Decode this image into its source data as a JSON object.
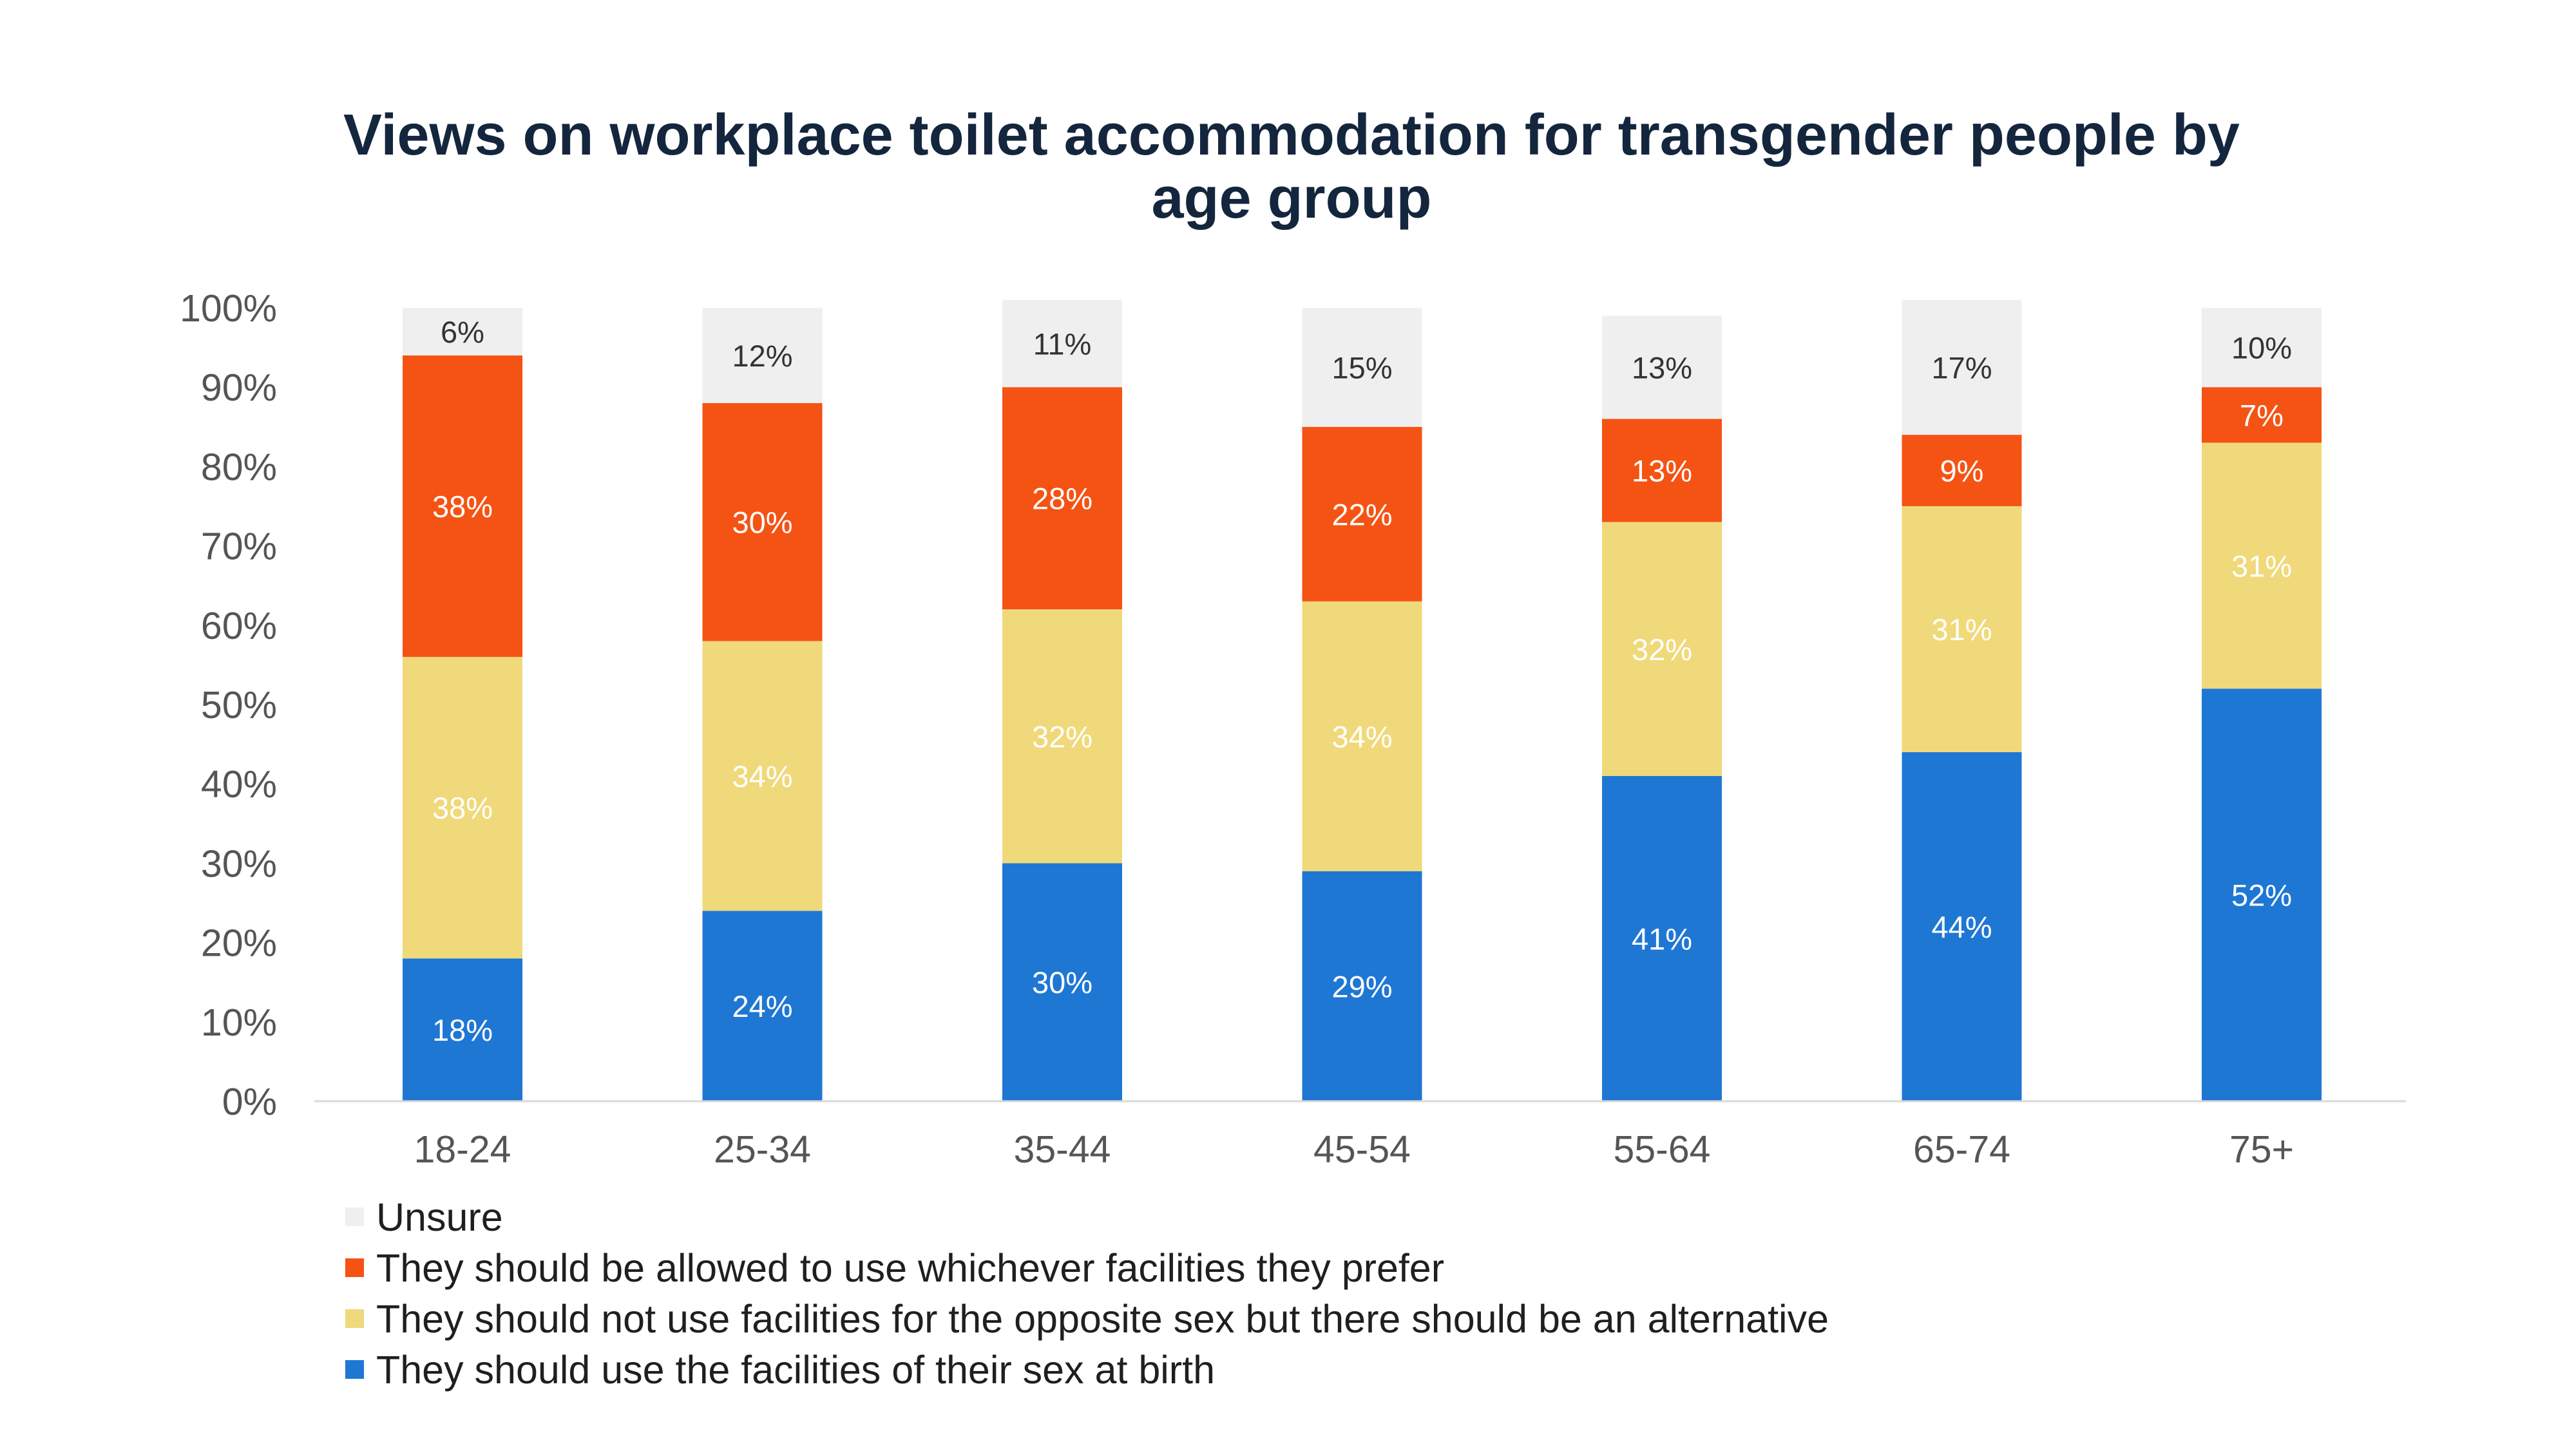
{
  "chart_data": {
    "type": "bar",
    "stacked": true,
    "title": "Views on workplace toilet accommodation for transgender people by age group",
    "title_lines": [
      "Views on workplace toilet accommodation for transgender people by",
      "age group"
    ],
    "categories": [
      "18-24",
      "25-34",
      "35-44",
      "45-54",
      "55-64",
      "65-74",
      "75+"
    ],
    "series": [
      {
        "name": "They should use the facilities of their sex at birth",
        "color": "#1f77d4",
        "values": [
          18,
          24,
          30,
          29,
          41,
          44,
          52
        ],
        "labels": [
          "18%",
          "24%",
          "30%",
          "29%",
          "41%",
          "44%",
          "52%"
        ]
      },
      {
        "name": "They should not use facilities for the opposite sex but there should be an alternative",
        "color": "#f0d97a",
        "values": [
          38,
          34,
          32,
          34,
          32,
          31,
          31
        ],
        "labels": [
          "38%",
          "34%",
          "32%",
          "34%",
          "32%",
          "31%",
          "31%"
        ]
      },
      {
        "name": "They should be allowed to use whichever facilities they prefer",
        "color": "#f55314",
        "values": [
          38,
          30,
          28,
          22,
          13,
          9,
          7
        ],
        "labels": [
          "38%",
          "30%",
          "28%",
          "22%",
          "13%",
          "9%",
          "7%"
        ]
      },
      {
        "name": "Unsure",
        "color": "#efefef",
        "values": [
          6,
          12,
          11,
          15,
          13,
          17,
          10
        ],
        "labels": [
          "6%",
          "12%",
          "11%",
          "15%",
          "13%",
          "17%",
          "10%"
        ]
      }
    ],
    "ylim": [
      0,
      100
    ],
    "yticks": [
      0,
      10,
      20,
      30,
      40,
      50,
      60,
      70,
      80,
      90,
      100
    ],
    "ytick_labels": [
      "0%",
      "10%",
      "20%",
      "30%",
      "40%",
      "50%",
      "60%",
      "70%",
      "80%",
      "90%",
      "100%"
    ],
    "grid": false,
    "legend_position": "bottom-left",
    "legend_order": [
      "Unsure",
      "They should be allowed to use whichever facilities they prefer",
      "They should not use facilities for the opposite sex but there should be an alternative",
      "They should use the facilities of their sex at birth"
    ]
  }
}
